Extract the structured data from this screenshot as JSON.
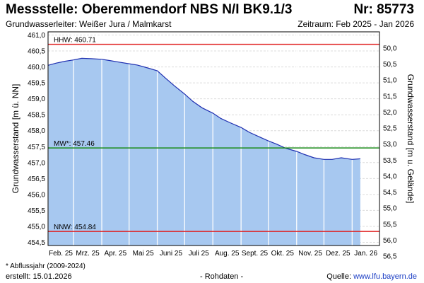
{
  "header": {
    "title": "Messstelle: Oberemmendorf NBS N/I BK9.1/3",
    "number": "Nr: 85773",
    "aquifer": "Grundwasserleiter:   Weißer Jura / Malmkarst",
    "period": "Zeitraum: Feb 2025 - Jan 2026"
  },
  "footer": {
    "note": "* Abflussjahr (2009-2024)",
    "created": "erstellt:  15.01.2026",
    "raw": "- Rohdaten -",
    "source_label": "Quelle: ",
    "source_url": "www.lfu.bayern.de"
  },
  "colors": {
    "area_fill": "#a7c8f0",
    "line": "#1f2fb0",
    "hhw": "#e02020",
    "mw": "#1a8a1a",
    "nnw": "#e02020",
    "source_link": "#1a3dc4"
  },
  "chart_data": {
    "type": "area",
    "title": "",
    "ylabel": "Grundwasserstand [m ü. NN]",
    "y2label": "Grundwasserstand [m u. Gelände]",
    "ylim": [
      454.4,
      461.1
    ],
    "y2lim": [
      50.0,
      56.5
    ],
    "y_ticks": [
      "461,0",
      "460,5",
      "460,0",
      "459,5",
      "459,0",
      "458,5",
      "458,0",
      "457,5",
      "457,0",
      "456,5",
      "456,0",
      "455,5",
      "455,0",
      "454,5"
    ],
    "y2_ticks": [
      "50,0",
      "50,5",
      "51,0",
      "51,5",
      "52,0",
      "52,5",
      "53,0",
      "53,5",
      "54,0",
      "54,5",
      "55,0",
      "55,5",
      "56,0",
      "56,5"
    ],
    "x_ticks": [
      "Feb. 25",
      "Mrz. 25",
      "Apr. 25",
      "Mai 25",
      "Juni 25",
      "Juli 25",
      "Aug. 25",
      "Sept. 25",
      "Okt. 25",
      "Nov. 25",
      "Dez. 25",
      "Jan. 26"
    ],
    "grid": true,
    "reference_lines": [
      {
        "label": "HHW: 460.71",
        "value": 460.71
      },
      {
        "label": "MW*: 457.46",
        "value": 457.46
      },
      {
        "label": "NNW: 454.84",
        "value": 454.84
      }
    ],
    "series": [
      {
        "x": [
          "2025-02-01",
          "2025-02-10",
          "2025-02-20",
          "2025-03-01",
          "2025-03-10",
          "2025-03-20",
          "2025-04-01",
          "2025-04-10",
          "2025-04-20",
          "2025-05-01",
          "2025-05-10",
          "2025-05-20",
          "2025-06-01",
          "2025-06-10",
          "2025-06-20",
          "2025-07-01",
          "2025-07-10",
          "2025-07-20",
          "2025-08-01",
          "2025-08-10",
          "2025-08-20",
          "2025-09-01",
          "2025-09-10",
          "2025-09-20",
          "2025-10-01",
          "2025-10-10",
          "2025-10-20",
          "2025-11-01",
          "2025-11-10",
          "2025-11-20",
          "2025-12-01",
          "2025-12-10",
          "2025-12-20",
          "2026-01-01",
          "2026-01-10"
        ],
        "values": [
          460.05,
          460.12,
          460.18,
          460.22,
          460.27,
          460.26,
          460.24,
          460.2,
          460.15,
          460.1,
          460.06,
          459.98,
          459.88,
          459.65,
          459.4,
          459.15,
          458.92,
          458.72,
          458.55,
          458.38,
          458.25,
          458.1,
          457.95,
          457.82,
          457.68,
          457.58,
          457.45,
          457.35,
          457.25,
          457.15,
          457.1,
          457.1,
          457.15,
          457.1,
          457.12
        ]
      }
    ]
  }
}
